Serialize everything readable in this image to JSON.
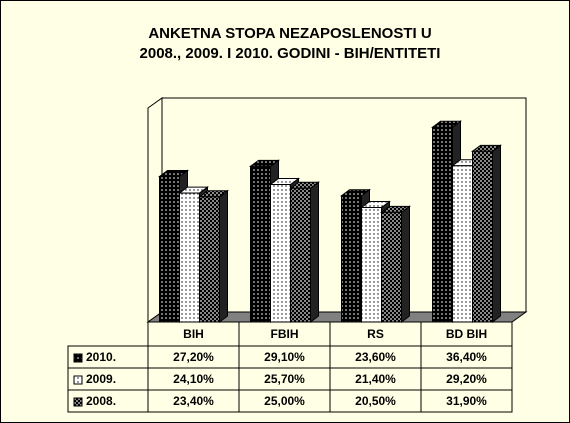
{
  "chart_data": {
    "type": "bar",
    "title": [
      "ANKETNA STOPA NEZAPOSLENOSTI U",
      "2008., 2009. I 2010. GODINI - BIH/ENTITETI"
    ],
    "categories": [
      "BIH",
      "FBIH",
      "RS",
      "BD BIH"
    ],
    "series": [
      {
        "name": "2010.",
        "color": "#000000",
        "values": [
          27.2,
          29.1,
          23.6,
          36.4
        ],
        "value_labels": [
          "27,20%",
          "29,10%",
          "23,60%",
          "36,40%"
        ]
      },
      {
        "name": "2009.",
        "color": "#ffffff",
        "values": [
          24.1,
          25.7,
          21.4,
          29.2
        ],
        "value_labels": [
          "24,10%",
          "25,70%",
          "21,40%",
          "29,20%"
        ]
      },
      {
        "name": "2008.",
        "color": "#404040",
        "values": [
          23.4,
          25.0,
          20.5,
          31.9
        ],
        "value_labels": [
          "23,40%",
          "25,00%",
          "20,50%",
          "31,90%"
        ]
      }
    ],
    "ylim": [
      0,
      40
    ]
  }
}
